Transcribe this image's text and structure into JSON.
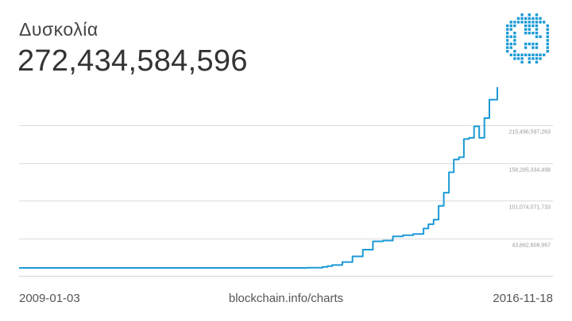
{
  "header": {
    "title": "Δυσκολία",
    "value": "272,434,584,596"
  },
  "logo": {
    "icon": "bitcoin-pixel-logo-icon",
    "color": "#1b9ad6"
  },
  "footer": {
    "start_date": "2009-01-03",
    "source": "blockchain.info/charts",
    "end_date": "2016-11-18"
  },
  "chart_data": {
    "type": "line",
    "title": "Δυσκολία",
    "xlabel": "",
    "ylabel": "",
    "xlim": [
      "2009-01-03",
      "2016-11-18"
    ],
    "ylim": [
      0,
      272434584596
    ],
    "y_ticks": [
      43862808967,
      101074071733,
      158285334498,
      215496597263
    ],
    "y_tick_labels": [
      "43,862,808,967",
      "101,074,071,733",
      "158,285,334,498",
      "215,496,597,263"
    ],
    "grid": true,
    "line_color": "#1b9ad6",
    "series": [
      {
        "x": [
          "2009-01-03",
          "2010-01-01",
          "2011-01-01",
          "2012-01-01",
          "2013-01-01",
          "2013-04-01",
          "2013-07-01",
          "2013-10-01",
          "2014-01-01",
          "2014-02-01",
          "2014-03-01",
          "2014-05-01",
          "2014-07-01",
          "2014-09-01",
          "2014-11-01",
          "2015-01-01",
          "2015-03-01",
          "2015-05-01",
          "2015-07-01",
          "2015-09-01",
          "2015-10-01",
          "2015-11-01",
          "2015-12-01",
          "2016-01-01",
          "2016-02-01",
          "2016-03-01",
          "2016-04-01",
          "2016-05-01",
          "2016-06-01",
          "2016-07-01",
          "2016-08-01",
          "2016-09-01",
          "2016-10-01",
          "2016-11-18"
        ],
        "y": [
          1,
          1,
          15000,
          1300000,
          3300000,
          7700000,
          21000000,
          267000000,
          1418000000,
          2621000000,
          4251000000,
          8853000000,
          17345000000,
          27428000000,
          40007000000,
          41272000000,
          47427000000,
          49402000000,
          51076000000,
          59335000000,
          65848000000,
          72722000000,
          93448000000,
          113354000000,
          144116000000,
          163491000000,
          166851000000,
          194254000000,
          196061000000,
          213398000000,
          196061000000,
          225832000000,
          253618000000,
          272434584596
        ]
      }
    ]
  }
}
